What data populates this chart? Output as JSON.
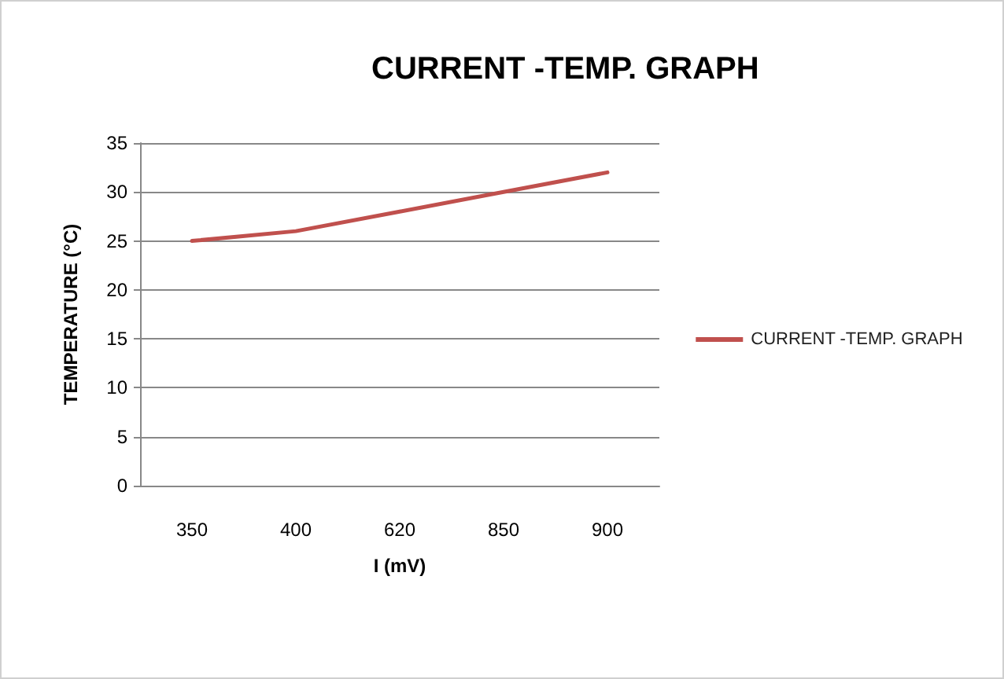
{
  "chart_data": {
    "type": "line",
    "title": "CURRENT -TEMP. GRAPH",
    "xlabel": "I (mV)",
    "ylabel": "TEMPERATURE (°C)",
    "categories": [
      "350",
      "400",
      "620",
      "850",
      "900"
    ],
    "series": [
      {
        "name": "CURRENT -TEMP. GRAPH",
        "color": "#c0504d",
        "values": [
          25,
          26,
          28,
          30,
          32
        ]
      }
    ],
    "ylim": [
      0,
      35
    ],
    "yticks": [
      0,
      5,
      10,
      15,
      20,
      25,
      30,
      35
    ],
    "grid": "y",
    "legend": "right",
    "marker": "none"
  }
}
